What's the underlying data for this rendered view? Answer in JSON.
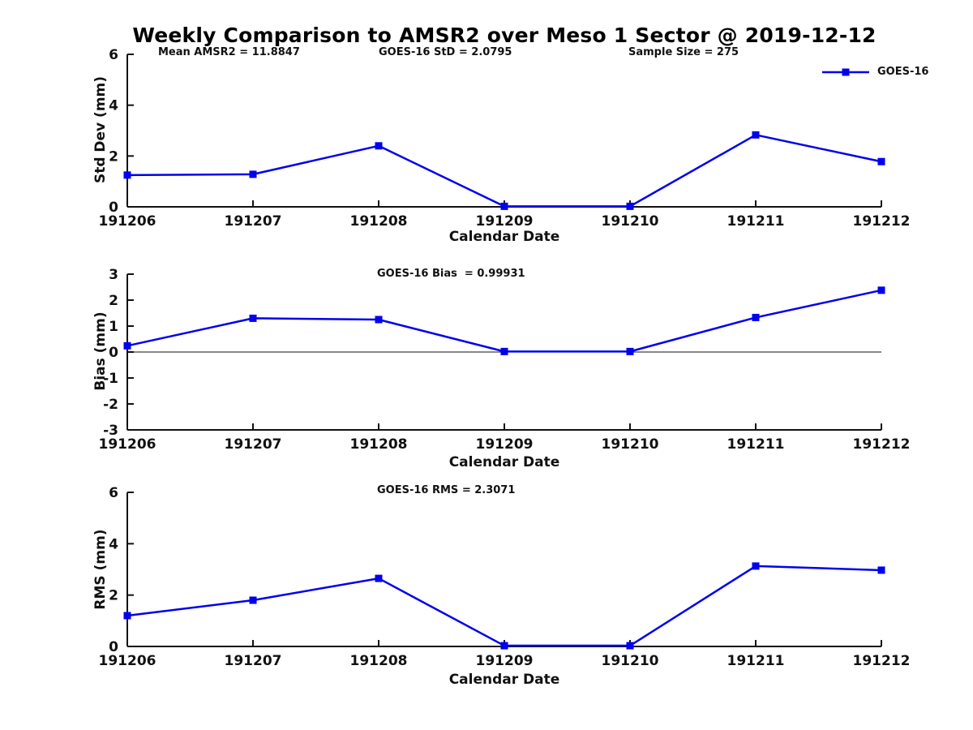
{
  "title": "Weekly Comparison to AMSR2 over Meso 1 Sector @ 2019-12-12",
  "legend": {
    "series_label": "GOES-16",
    "color": "#0000EE",
    "position": "top-right"
  },
  "chart_data": [
    {
      "type": "line",
      "ylabel": "Std Dev (mm)",
      "xlabel": "Calendar Date",
      "categories": [
        "191206",
        "191207",
        "191208",
        "191209",
        "191210",
        "191211",
        "191212"
      ],
      "ylim": [
        0,
        6
      ],
      "yticks": [
        0,
        2,
        4,
        6
      ],
      "grid": false,
      "marker": "square",
      "series": [
        {
          "name": "GOES-16",
          "values": [
            1.25,
            1.28,
            2.4,
            0.02,
            0.02,
            2.83,
            1.78
          ]
        }
      ],
      "annotations": [
        "Mean AMSR2 = 11.8847",
        "GOES-16 StD = 2.0795",
        "Sample Size = 275"
      ]
    },
    {
      "type": "line",
      "ylabel": "Bias (mm)",
      "xlabel": "Calendar Date",
      "categories": [
        "191206",
        "191207",
        "191208",
        "191209",
        "191210",
        "191211",
        "191212"
      ],
      "ylim": [
        -3,
        3
      ],
      "yticks": [
        3,
        2,
        1,
        0,
        -1,
        -2,
        -3
      ],
      "zero_line": true,
      "grid": false,
      "marker": "square",
      "series": [
        {
          "name": "GOES-16",
          "values": [
            0.24,
            1.3,
            1.25,
            0.02,
            0.02,
            1.33,
            2.38
          ]
        }
      ],
      "annotations": [
        "GOES-16 Bias  = 0.99931"
      ]
    },
    {
      "type": "line",
      "ylabel": "RMS (mm)",
      "xlabel": "Calendar Date",
      "categories": [
        "191206",
        "191207",
        "191208",
        "191209",
        "191210",
        "191211",
        "191212"
      ],
      "ylim": [
        0,
        6
      ],
      "yticks": [
        0,
        2,
        4,
        6
      ],
      "grid": false,
      "marker": "square",
      "series": [
        {
          "name": "GOES-16",
          "values": [
            1.2,
            1.8,
            2.65,
            0.03,
            0.03,
            3.13,
            2.97
          ]
        }
      ],
      "annotations": [
        "GOES-16 RMS = 2.3071"
      ]
    }
  ]
}
